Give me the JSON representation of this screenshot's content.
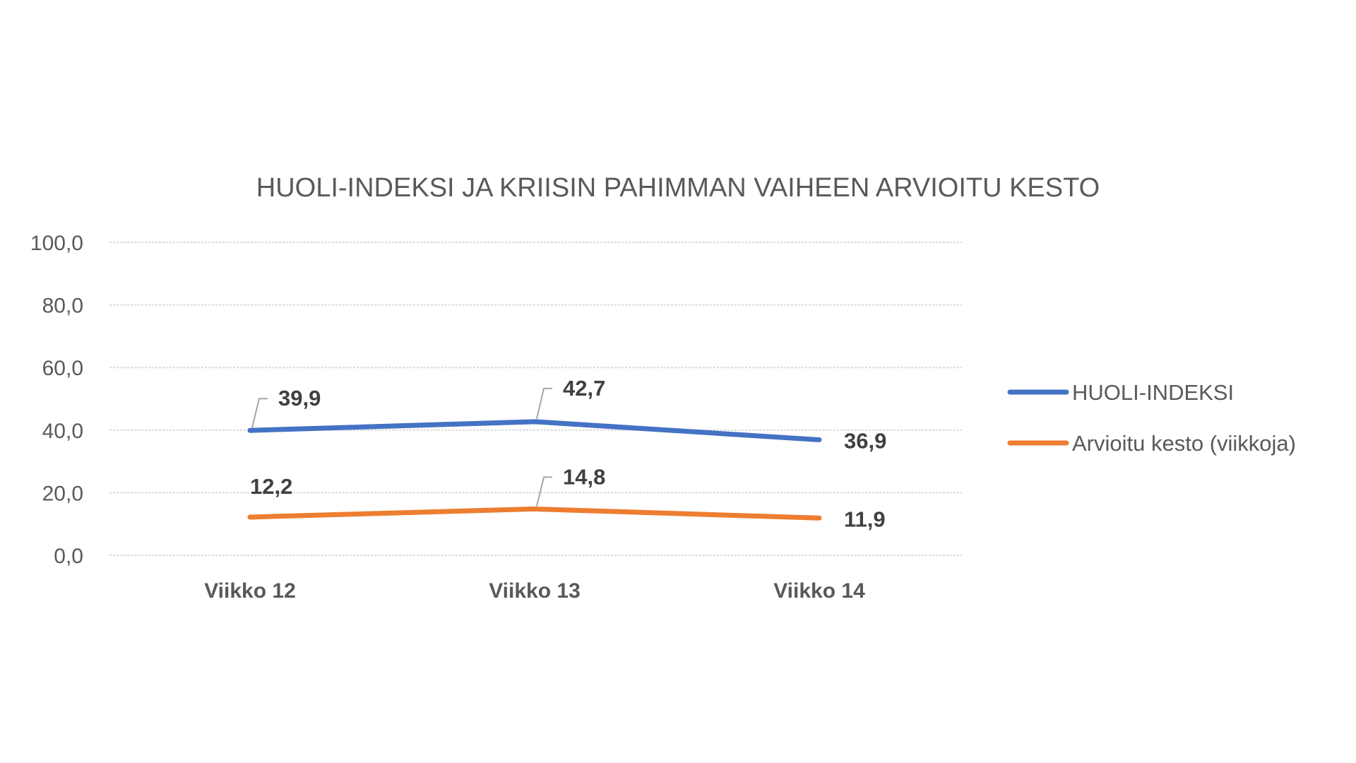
{
  "chart_data": {
    "type": "line",
    "title": "HUOLI-INDEKSI JA KRIISIN PAHIMMAN VAIHEEN ARVIOITU KESTO",
    "xlabel": "",
    "ylabel": "",
    "categories": [
      "Viikko 12",
      "Viikko 13",
      "Viikko 14"
    ],
    "ylim": [
      0,
      100
    ],
    "y_ticks": [
      0,
      20,
      40,
      60,
      80,
      100
    ],
    "y_tick_labels": [
      "0,0",
      "20,0",
      "40,0",
      "60,0",
      "80,0",
      "100,0"
    ],
    "grid": true,
    "legend_position": "right",
    "series": [
      {
        "name": "HUOLI-INDEKSI",
        "color": "#4472c4",
        "values": [
          39.9,
          42.7,
          36.9
        ],
        "labels": [
          "39,9",
          "42,7",
          "36,9"
        ]
      },
      {
        "name": "Arvioitu kesto (viikkoja)",
        "color": "#ed7d31",
        "values": [
          12.2,
          14.8,
          11.9
        ],
        "labels": [
          "12,2",
          "14,8",
          "11,9"
        ]
      }
    ]
  }
}
